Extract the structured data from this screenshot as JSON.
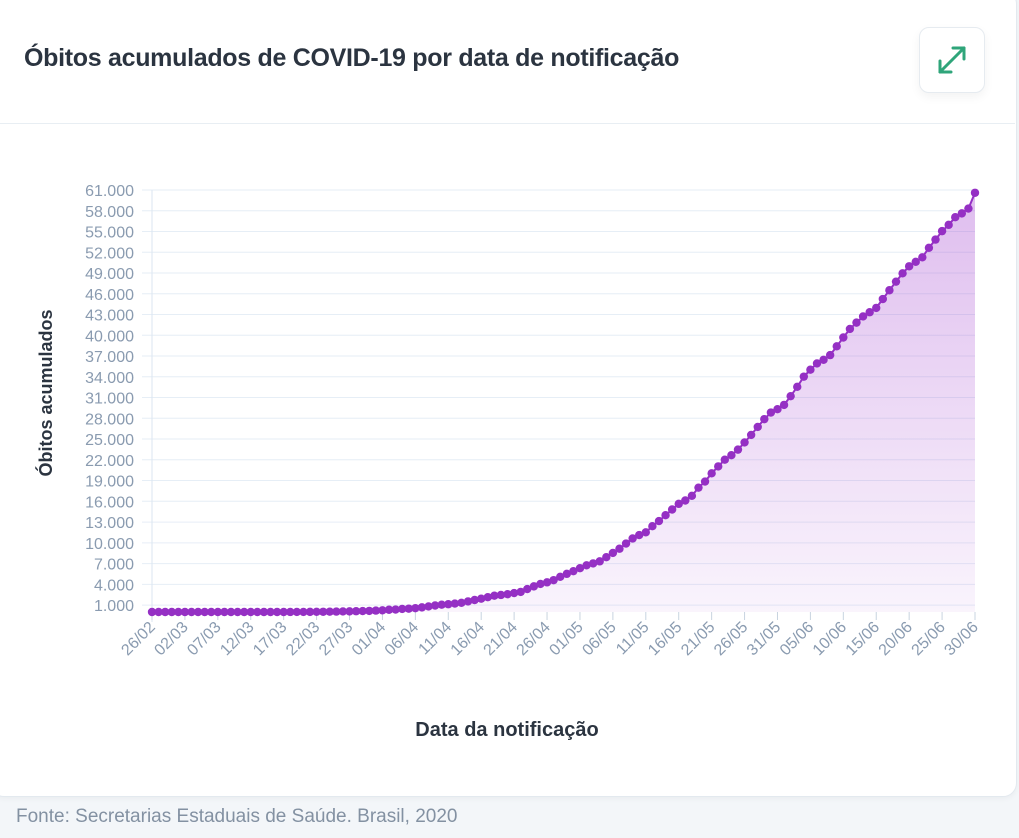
{
  "header": {
    "title": "Óbitos acumulados de COVID-19 por data de notificação",
    "expand_icon": "expand-diagonal-arrows-icon"
  },
  "colors": {
    "series": "#9530c4",
    "accent_green": "#2fa57a",
    "tick_text": "#8a9bb0"
  },
  "footer": {
    "source": "Fonte: Secretarias Estaduais de Saúde. Brasil, 2020"
  },
  "chart_data": {
    "type": "area",
    "title": "Óbitos acumulados de COVID-19 por data de notificação",
    "xlabel": "Data da notificação",
    "ylabel": "Óbitos acumulados",
    "ylim": [
      0,
      61000
    ],
    "yticks": [
      "1.000",
      "4.000",
      "7.000",
      "10.000",
      "13.000",
      "16.000",
      "19.000",
      "22.000",
      "25.000",
      "28.000",
      "31.000",
      "34.000",
      "37.000",
      "40.000",
      "43.000",
      "46.000",
      "49.000",
      "52.000",
      "55.000",
      "58.000",
      "61.000"
    ],
    "ytick_values": [
      1000,
      4000,
      7000,
      10000,
      13000,
      16000,
      19000,
      22000,
      25000,
      28000,
      31000,
      34000,
      37000,
      40000,
      43000,
      46000,
      49000,
      52000,
      55000,
      58000,
      61000
    ],
    "xticks": [
      "26/02",
      "02/03",
      "07/03",
      "12/03",
      "17/03",
      "22/03",
      "27/03",
      "01/04",
      "06/04",
      "11/04",
      "16/04",
      "21/04",
      "26/04",
      "01/05",
      "06/05",
      "11/05",
      "16/05",
      "21/05",
      "26/05",
      "31/05",
      "05/06",
      "10/06",
      "15/06",
      "20/06",
      "25/06",
      "30/06"
    ],
    "x_start": "26/02",
    "x_end": "30/06",
    "x_step_days": 1,
    "grid": true,
    "legend": "none",
    "values": [
      0,
      0,
      0,
      0,
      0,
      0,
      0,
      0,
      0,
      0,
      0,
      0,
      0,
      0,
      0,
      0,
      0,
      0,
      0,
      0,
      1,
      4,
      7,
      11,
      18,
      25,
      34,
      46,
      57,
      77,
      92,
      111,
      136,
      159,
      201,
      240,
      324,
      359,
      445,
      486,
      553,
      667,
      800,
      941,
      1056,
      1124,
      1223,
      1328,
      1532,
      1736,
      1924,
      2141,
      2354,
      2462,
      2575,
      2741,
      2906,
      3313,
      3704,
      4057,
      4286,
      4603,
      5083,
      5513,
      5901,
      6329,
      6750,
      7025,
      7321,
      7921,
      8536,
      9146,
      9897,
      10627,
      11123,
      11519,
      12400,
      13149,
      13993,
      14817,
      15633,
      16118,
      16792,
      17971,
      18859,
      20047,
      21048,
      22013,
      22666,
      23473,
      24512,
      25598,
      26754,
      27878,
      28834,
      29314,
      29937,
      31199,
      32548,
      34021,
      35026,
      35930,
      36455,
      37134,
      38406,
      39680,
      40919,
      41828,
      42720,
      43332,
      43959,
      45241,
      46510,
      47748,
      48954,
      49976,
      50617,
      51271,
      52645,
      53830,
      55054,
      55961,
      57070,
      57622,
      58314,
      60600
    ]
  }
}
